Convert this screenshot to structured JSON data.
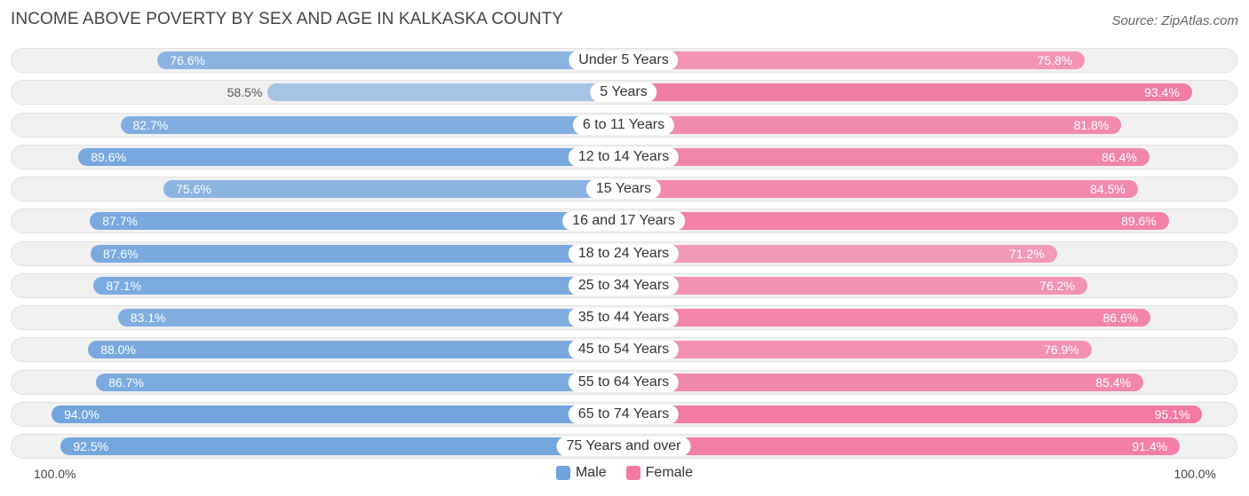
{
  "chart_data": {
    "type": "bar",
    "orientation": "horizontal-diverging",
    "title": "INCOME ABOVE POVERTY BY SEX AND AGE IN KALKASKA COUNTY",
    "source": "Source: ZipAtlas.com",
    "categories": [
      "Under 5 Years",
      "5 Years",
      "6 to 11 Years",
      "12 to 14 Years",
      "15 Years",
      "16 and 17 Years",
      "18 to 24 Years",
      "25 to 34 Years",
      "35 to 44 Years",
      "45 to 54 Years",
      "55 to 64 Years",
      "65 to 74 Years",
      "75 Years and over"
    ],
    "series": [
      {
        "name": "Male",
        "color": "#6fa3dd",
        "values": [
          76.6,
          58.5,
          82.7,
          89.6,
          75.6,
          87.7,
          87.6,
          87.1,
          83.1,
          88.0,
          86.7,
          94.0,
          92.5
        ],
        "labels": [
          "76.6%",
          "58.5%",
          "82.7%",
          "89.6%",
          "75.6%",
          "87.7%",
          "87.6%",
          "87.1%",
          "83.1%",
          "88.0%",
          "86.7%",
          "94.0%",
          "92.5%"
        ]
      },
      {
        "name": "Female",
        "color": "#f27aa0",
        "values": [
          75.8,
          93.4,
          81.8,
          86.4,
          84.5,
          89.6,
          71.2,
          76.2,
          86.6,
          76.9,
          85.4,
          95.1,
          91.4
        ],
        "labels": [
          "75.8%",
          "93.4%",
          "81.8%",
          "86.4%",
          "84.5%",
          "89.6%",
          "71.2%",
          "76.2%",
          "86.6%",
          "76.9%",
          "85.4%",
          "95.1%",
          "91.4%"
        ]
      }
    ],
    "xlim": [
      0,
      100
    ],
    "axis_left_label": "100.0%",
    "axis_right_label": "100.0%",
    "legend_position": "bottom-center"
  }
}
